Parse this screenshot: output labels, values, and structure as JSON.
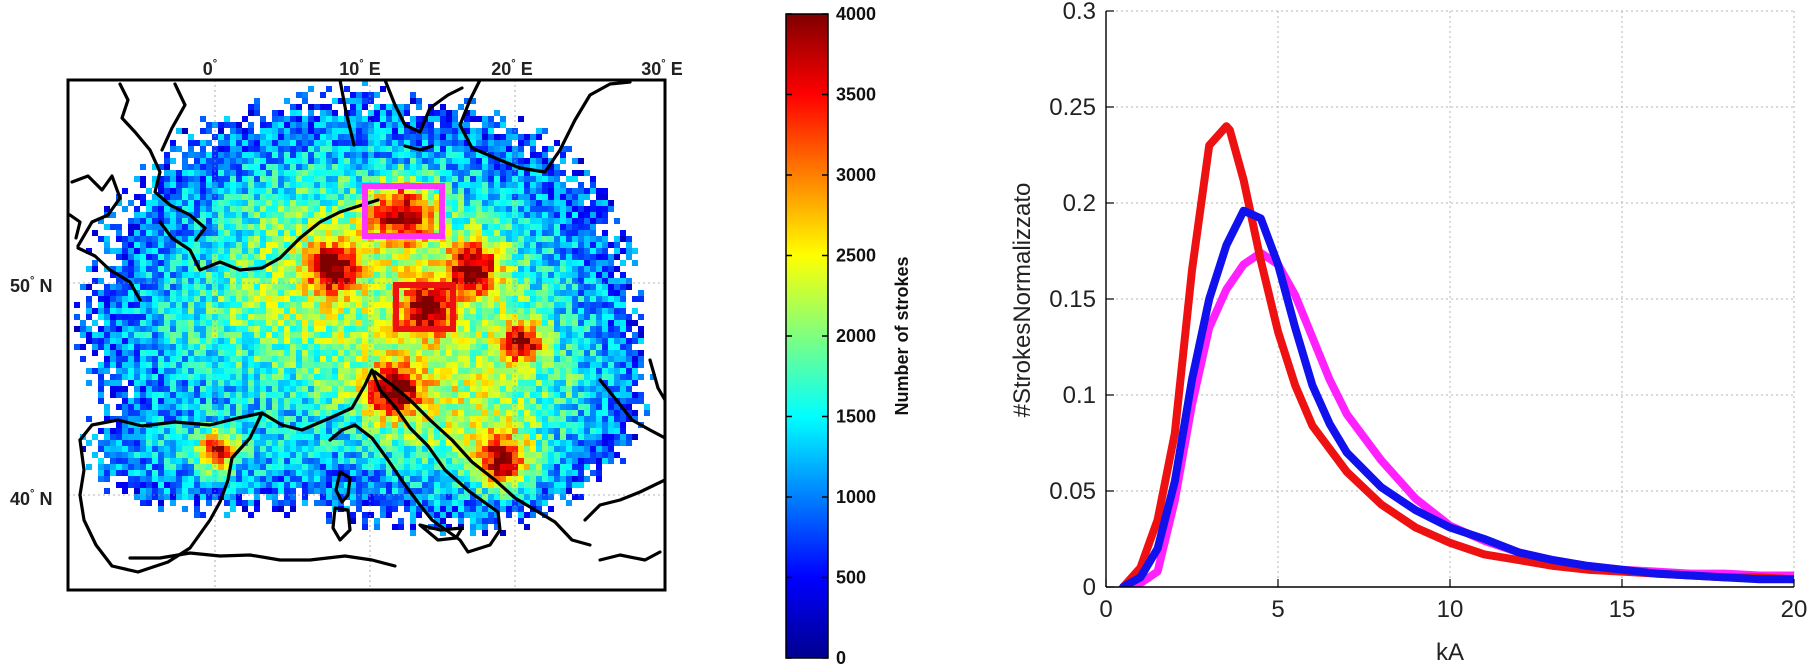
{
  "map_panel": {
    "lon_ticks": [
      "0",
      "10",
      "20",
      "30"
    ],
    "lon_suffix": "E",
    "lat_ticks": [
      "50",
      "40"
    ],
    "lat_suffix": "N",
    "degree": "°",
    "box_colors": {
      "north": "#ff33ff",
      "south": "#ee1111"
    }
  },
  "colorbar": {
    "label": "Number of strokes",
    "ticks": [
      "0",
      "500",
      "1000",
      "1500",
      "2000",
      "2500",
      "3000",
      "3500",
      "4000"
    ],
    "range": [
      0,
      4000
    ],
    "colormap": "jet"
  },
  "chart_data": {
    "type": "line",
    "xlabel": "kA",
    "ylabel": "#StrokesNormalizzato",
    "xlim": [
      0,
      20
    ],
    "ylim": [
      0,
      0.3
    ],
    "xticks": [
      "0",
      "5",
      "10",
      "15",
      "20"
    ],
    "yticks": [
      "0",
      "0.05",
      "0.1",
      "0.15",
      "0.2",
      "0.25",
      "0.3"
    ],
    "grid": true,
    "series": [
      {
        "color": "#ff22ff",
        "x": [
          0.5,
          1.0,
          1.5,
          2.0,
          2.5,
          3.0,
          3.5,
          4.0,
          4.5,
          5.0,
          5.5,
          6.0,
          6.5,
          7.0,
          8.0,
          9.0,
          10.0,
          11.0,
          12.0,
          13.0,
          14.0,
          15.0,
          16.0,
          17.0,
          18.0,
          19.0,
          20.0
        ],
        "y": [
          0.0,
          0.002,
          0.008,
          0.045,
          0.095,
          0.135,
          0.155,
          0.168,
          0.174,
          0.168,
          0.152,
          0.13,
          0.108,
          0.09,
          0.066,
          0.046,
          0.032,
          0.024,
          0.018,
          0.014,
          0.011,
          0.009,
          0.008,
          0.007,
          0.007,
          0.006,
          0.006
        ]
      },
      {
        "color": "#ee1111",
        "x": [
          0.5,
          1.0,
          1.5,
          2.0,
          2.5,
          3.0,
          3.5,
          3.6,
          4.0,
          4.5,
          5.0,
          5.5,
          6.0,
          7.0,
          8.0,
          9.0,
          10.0,
          11.0,
          12.0,
          13.0,
          14.0,
          15.0,
          16.0,
          17.0,
          18.0,
          19.0,
          20.0
        ],
        "y": [
          0.0,
          0.01,
          0.035,
          0.08,
          0.165,
          0.23,
          0.24,
          0.238,
          0.212,
          0.17,
          0.133,
          0.105,
          0.084,
          0.06,
          0.043,
          0.031,
          0.023,
          0.017,
          0.014,
          0.011,
          0.009,
          0.008,
          0.007,
          0.006,
          0.005,
          0.005,
          0.004
        ]
      },
      {
        "color": "#1111ee",
        "x": [
          0.5,
          1.0,
          1.5,
          2.0,
          2.5,
          3.0,
          3.5,
          4.0,
          4.5,
          5.0,
          5.5,
          6.0,
          6.5,
          7.0,
          8.0,
          9.0,
          10.0,
          11.0,
          12.0,
          13.0,
          14.0,
          15.0,
          16.0,
          17.0,
          18.0,
          19.0,
          20.0
        ],
        "y": [
          0.0,
          0.005,
          0.02,
          0.055,
          0.108,
          0.15,
          0.178,
          0.196,
          0.192,
          0.168,
          0.135,
          0.105,
          0.085,
          0.07,
          0.052,
          0.04,
          0.031,
          0.025,
          0.018,
          0.014,
          0.011,
          0.009,
          0.007,
          0.006,
          0.005,
          0.004,
          0.004
        ]
      }
    ]
  }
}
